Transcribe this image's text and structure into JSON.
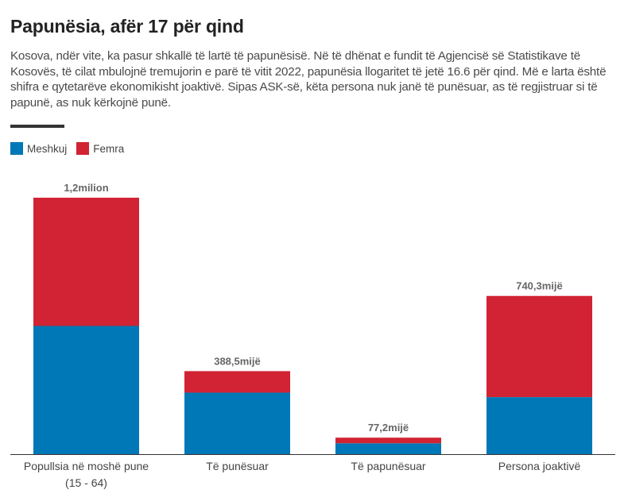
{
  "title": "Papunësia, afër 17 për qind",
  "subtitle": "Kosova, ndër vite, ka pasur shkallë të lartë të papunësisë. Në të dhënat e fundit të Agjencisë së Statistikave të Kosovës, të cilat mbulojnë tremujorin e parë të vitit 2022, papunësia llogaritet të jetë 16.6 për qind. Më e larta është shifra e qytetarëve ekonomikisht joaktivë. Sipas ASK-së, këta persona nuk janë të punësuar, as të regjistruar si të papunë, as nuk kërkojnë punë.",
  "colors": {
    "meshkuj": "#0077b6",
    "femra": "#d12333"
  },
  "chart_data": {
    "type": "bar",
    "stacked": true,
    "categories": [
      "Popullsia në moshë pune (15 - 64)",
      "Të punësuar",
      "Të papunësuar",
      "Persona joaktivë"
    ],
    "series": [
      {
        "name": "Meshkuj",
        "values": [
          600,
          288,
          51,
          267
        ]
      },
      {
        "name": "Femra",
        "values": [
          600,
          100.5,
          26.2,
          473.3
        ]
      }
    ],
    "totals": [
      1200,
      388.5,
      77.2,
      740.3
    ],
    "total_labels": [
      "1,2milion",
      "388,5mijë",
      "77,2mijë",
      "740,3mijë"
    ],
    "y_unit": "mijë",
    "ylim": [
      0,
      1200
    ],
    "legend": "top-left",
    "grid": false
  }
}
